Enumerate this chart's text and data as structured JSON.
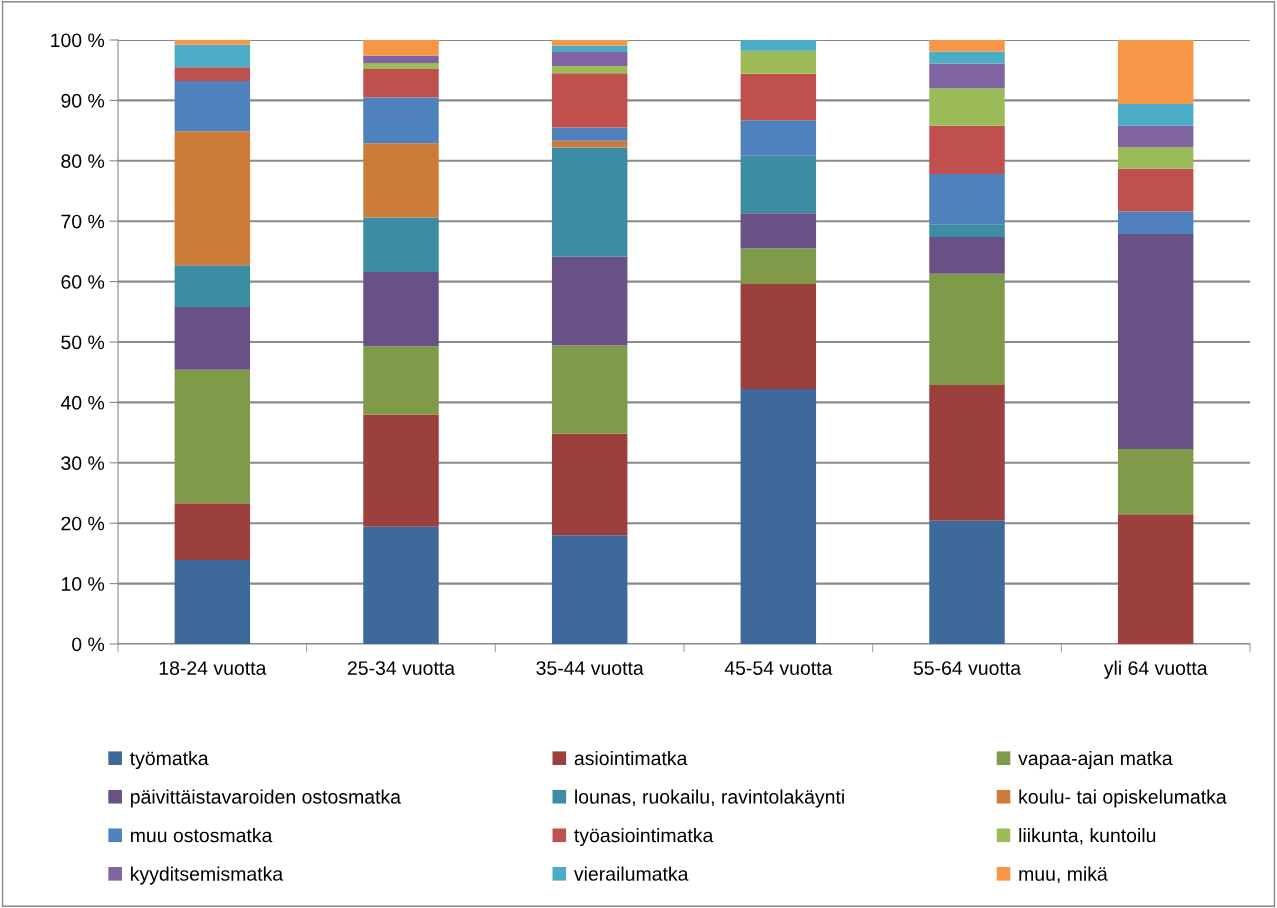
{
  "chart_data": {
    "type": "bar",
    "stacked": true,
    "categories": [
      "18-24 vuotta",
      "25-34 vuotta",
      "35-44 vuotta",
      "45-54 vuotta",
      "55-64 vuotta",
      "yli 64 vuotta"
    ],
    "series": [
      {
        "name": "työmatka",
        "color": "#3e6a9b",
        "values": [
          13.9,
          19.4,
          18.0,
          42.2,
          20.4,
          0
        ]
      },
      {
        "name": "asiointimatka",
        "color": "#9c403e",
        "values": [
          9.4,
          18.6,
          16.8,
          17.4,
          22.5,
          21.5
        ]
      },
      {
        "name": "vapaa-ajan matka",
        "color": "#7f9a48",
        "values": [
          22.1,
          11.3,
          14.6,
          5.9,
          18.4,
          10.8
        ]
      },
      {
        "name": "päivittäistavaroiden ostosmatka",
        "color": "#695185",
        "values": [
          10.4,
          12.3,
          14.7,
          5.8,
          6.1,
          35.6
        ]
      },
      {
        "name": "lounas, ruokailu, ravintolakäynti",
        "color": "#3c8da3",
        "values": [
          6.9,
          9.0,
          18.1,
          9.6,
          2.1,
          0
        ]
      },
      {
        "name": "koulu- tai opiskelumatka",
        "color": "#cc7b38",
        "values": [
          22.2,
          12.3,
          1.1,
          0,
          0,
          0
        ]
      },
      {
        "name": "muu ostosmatka",
        "color": "#4f81bd",
        "values": [
          8.3,
          7.6,
          2.2,
          5.8,
          8.3,
          3.7
        ]
      },
      {
        "name": "työasiointimatka",
        "color": "#c0504d",
        "values": [
          2.3,
          4.7,
          9.0,
          7.7,
          8.0,
          7.1
        ]
      },
      {
        "name": "liikunta, kuntoilu",
        "color": "#9bbb59",
        "values": [
          0,
          1.0,
          1.2,
          3.8,
          6.2,
          3.6
        ]
      },
      {
        "name": "kyyditsemismatka",
        "color": "#8064a2",
        "values": [
          0,
          1.2,
          2.3,
          0,
          4.1,
          3.5
        ]
      },
      {
        "name": "vierailumatka",
        "color": "#4bacc6",
        "values": [
          3.7,
          0,
          1.1,
          1.8,
          2.0,
          3.6
        ]
      },
      {
        "name": "muu, mikä",
        "color": "#f79646",
        "values": [
          0.8,
          2.6,
          0.9,
          0,
          1.9,
          10.6
        ]
      }
    ],
    "ylim": [
      0,
      100
    ],
    "yticks": [
      {
        "value": 0,
        "label": "0 %"
      },
      {
        "value": 10,
        "label": "10 %"
      },
      {
        "value": 20,
        "label": "20 %"
      },
      {
        "value": 30,
        "label": "30 %"
      },
      {
        "value": 40,
        "label": "40 %"
      },
      {
        "value": 50,
        "label": "50 %"
      },
      {
        "value": 60,
        "label": "60 %"
      },
      {
        "value": 70,
        "label": "70 %"
      },
      {
        "value": 80,
        "label": "80 %"
      },
      {
        "value": 90,
        "label": "90 %"
      },
      {
        "value": 100,
        "label": "100 %"
      }
    ],
    "grid": "y",
    "legend": "bottom"
  }
}
